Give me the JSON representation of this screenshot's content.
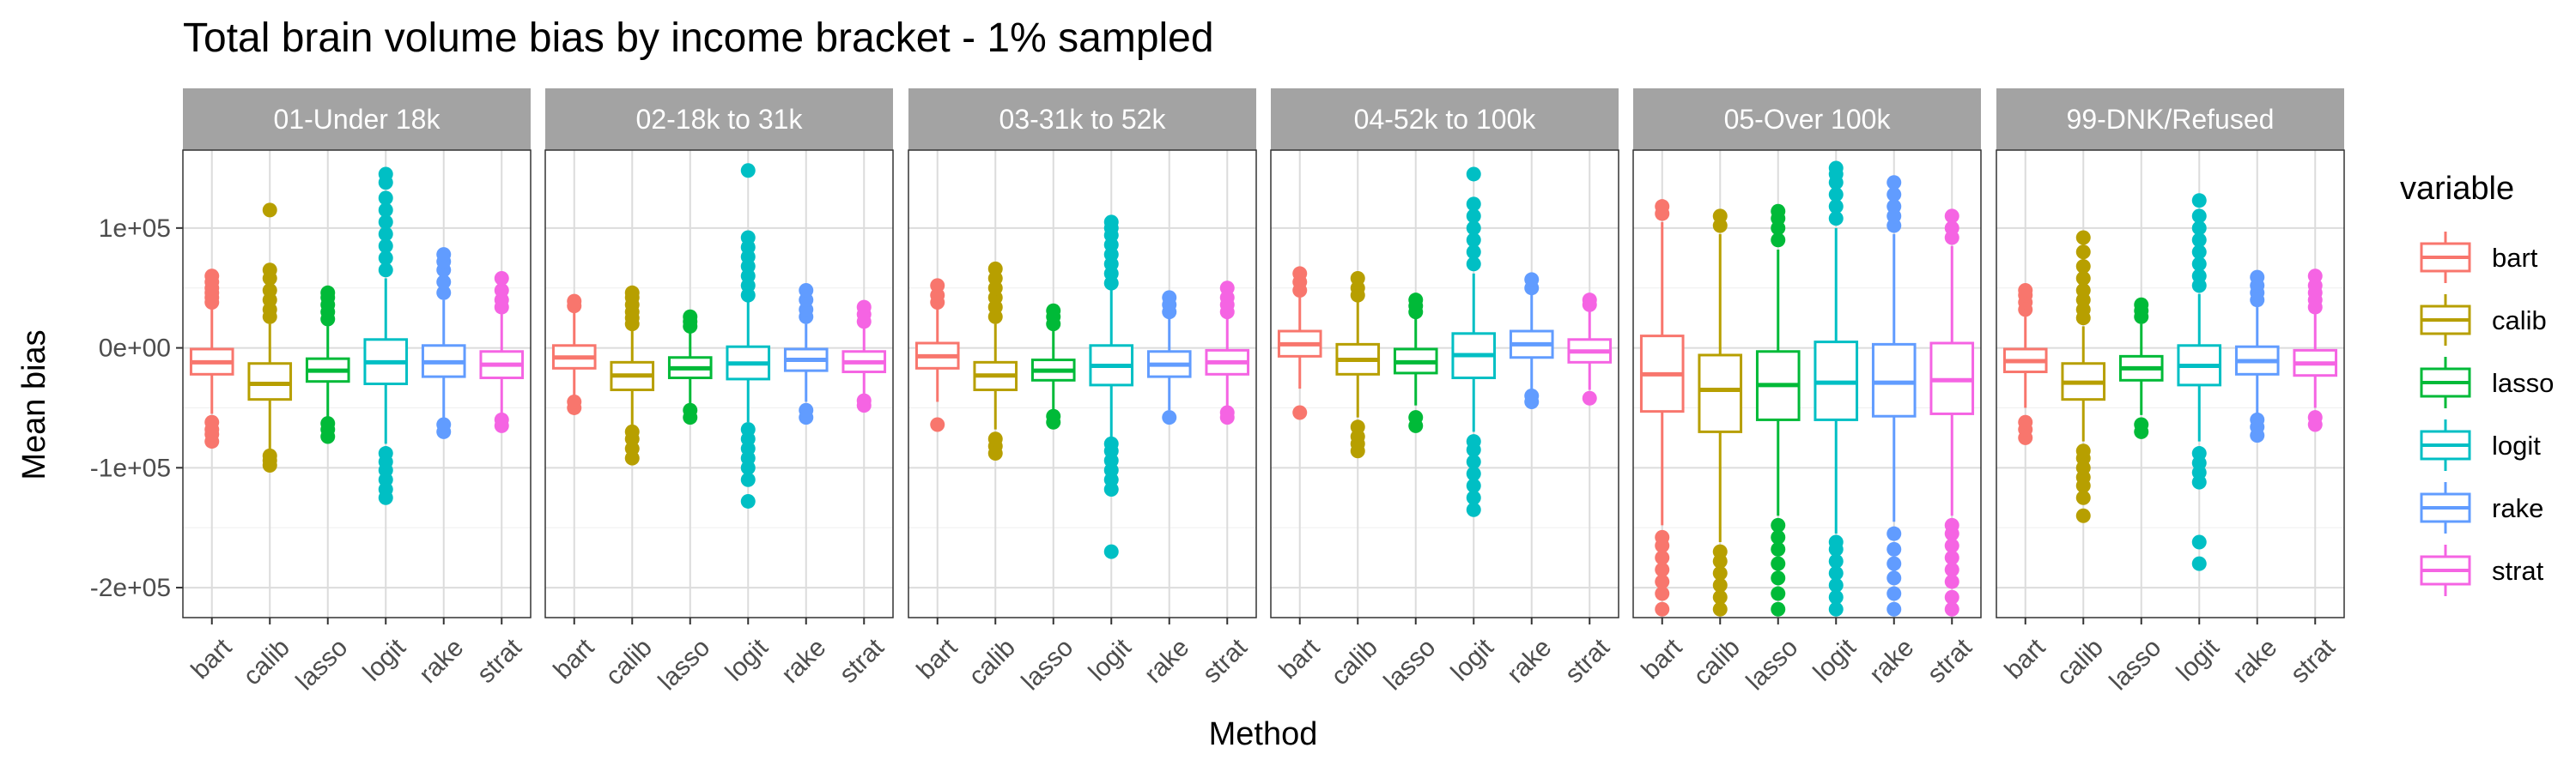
{
  "chart_data": {
    "type": "box",
    "title": "Total brain volume bias by income bracket - 1% sampled",
    "xlabel": "Method",
    "ylabel": "Mean bias",
    "categories": [
      "bart",
      "calib",
      "lasso",
      "logit",
      "rake",
      "strat"
    ],
    "y_ticks": [
      {
        "value": 100000,
        "label": "1e+05"
      },
      {
        "value": 0,
        "label": "0e+00"
      },
      {
        "value": -100000,
        "label": "-1e+05"
      },
      {
        "value": -200000,
        "label": "-2e+05"
      }
    ],
    "ylim": [
      -225000,
      165000
    ],
    "grid": true,
    "legend": {
      "title": "variable",
      "position": "right",
      "entries": [
        "bart",
        "calib",
        "lasso",
        "logit",
        "rake",
        "strat"
      ]
    },
    "colors": {
      "bart": "#F8766D",
      "calib": "#B79F00",
      "lasso": "#00BA38",
      "logit": "#00BFC4",
      "rake": "#619CFF",
      "strat": "#F564E3"
    },
    "panels": [
      {
        "name": "01-Under 18k",
        "boxes": [
          {
            "method": "bart",
            "q1": -22000,
            "median": -12000,
            "q3": -1000,
            "whisker_low": -55000,
            "whisker_high": 33000,
            "outliers": [
              -78000,
              -72000,
              -68000,
              -62000,
              38000,
              42000,
              46000,
              50000,
              55000,
              60000
            ]
          },
          {
            "method": "calib",
            "q1": -43000,
            "median": -30000,
            "q3": -13000,
            "whisker_low": -85000,
            "whisker_high": 20000,
            "outliers": [
              -98000,
              -94000,
              -90000,
              26000,
              32000,
              40000,
              48000,
              58000,
              65000,
              115000
            ]
          },
          {
            "method": "lasso",
            "q1": -28000,
            "median": -19000,
            "q3": -9000,
            "whisker_low": -58000,
            "whisker_high": 18000,
            "outliers": [
              -74000,
              -68000,
              -63000,
              24000,
              30000,
              36000,
              42000,
              46000
            ]
          },
          {
            "method": "logit",
            "q1": -30000,
            "median": -12000,
            "q3": 7000,
            "whisker_low": -80000,
            "whisker_high": 58000,
            "outliers": [
              -125000,
              -118000,
              -110000,
              -102000,
              -95000,
              -88000,
              65000,
              75000,
              85000,
              95000,
              105000,
              115000,
              125000,
              138000,
              145000
            ]
          },
          {
            "method": "rake",
            "q1": -24000,
            "median": -12000,
            "q3": 2000,
            "whisker_low": -60000,
            "whisker_high": 40000,
            "outliers": [
              -70000,
              -64000,
              46000,
              55000,
              65000,
              72000,
              78000
            ]
          },
          {
            "method": "strat",
            "q1": -25000,
            "median": -14000,
            "q3": -3000,
            "whisker_low": -57000,
            "whisker_high": 28000,
            "outliers": [
              -65000,
              -60000,
              34000,
              40000,
              48000,
              58000
            ]
          }
        ]
      },
      {
        "name": "02-18k to 31k",
        "boxes": [
          {
            "method": "bart",
            "q1": -17000,
            "median": -8000,
            "q3": 2000,
            "whisker_low": -42000,
            "whisker_high": 30000,
            "outliers": [
              -50000,
              -45000,
              35000,
              39000
            ]
          },
          {
            "method": "calib",
            "q1": -35000,
            "median": -23000,
            "q3": -12000,
            "whisker_low": -65000,
            "whisker_high": 15000,
            "outliers": [
              -92000,
              -84000,
              -76000,
              -70000,
              20000,
              25000,
              30000,
              36000,
              42000,
              46000
            ]
          },
          {
            "method": "lasso",
            "q1": -25000,
            "median": -17000,
            "q3": -8000,
            "whisker_low": -48000,
            "whisker_high": 13000,
            "outliers": [
              -58000,
              -52000,
              18000,
              22000,
              26000
            ]
          },
          {
            "method": "logit",
            "q1": -26000,
            "median": -13000,
            "q3": 1000,
            "whisker_low": -62000,
            "whisker_high": 38000,
            "outliers": [
              -128000,
              -110000,
              -100000,
              -92000,
              -84000,
              -76000,
              -68000,
              44000,
              52000,
              60000,
              68000,
              76000,
              84000,
              92000,
              148000
            ]
          },
          {
            "method": "rake",
            "q1": -19000,
            "median": -10000,
            "q3": -1000,
            "whisker_low": -45000,
            "whisker_high": 20000,
            "outliers": [
              -58000,
              -52000,
              26000,
              32000,
              40000,
              48000
            ]
          },
          {
            "method": "strat",
            "q1": -20000,
            "median": -12000,
            "q3": -3000,
            "whisker_low": -40000,
            "whisker_high": 18000,
            "outliers": [
              -48000,
              -44000,
              22000,
              28000,
              34000
            ]
          }
        ]
      },
      {
        "name": "03-31k to 52k",
        "boxes": [
          {
            "method": "bart",
            "q1": -17000,
            "median": -7000,
            "q3": 4000,
            "whisker_low": -45000,
            "whisker_high": 33000,
            "outliers": [
              -64000,
              38000,
              44000,
              52000
            ]
          },
          {
            "method": "calib",
            "q1": -35000,
            "median": -23000,
            "q3": -12000,
            "whisker_low": -68000,
            "whisker_high": 20000,
            "outliers": [
              -88000,
              -82000,
              -76000,
              26000,
              34000,
              42000,
              50000,
              58000,
              66000
            ]
          },
          {
            "method": "lasso",
            "q1": -27000,
            "median": -19000,
            "q3": -10000,
            "whisker_low": -52000,
            "whisker_high": 14000,
            "outliers": [
              -62000,
              -57000,
              20000,
              26000,
              31000
            ]
          },
          {
            "method": "logit",
            "q1": -31000,
            "median": -15000,
            "q3": 2000,
            "whisker_low": -75000,
            "whisker_high": 48000,
            "outliers": [
              -170000,
              -118000,
              -110000,
              -102000,
              -94000,
              -86000,
              -80000,
              54000,
              62000,
              70000,
              78000,
              86000,
              94000,
              100000,
              105000
            ]
          },
          {
            "method": "rake",
            "q1": -24000,
            "median": -14000,
            "q3": -3000,
            "whisker_low": -52000,
            "whisker_high": 25000,
            "outliers": [
              -58000,
              30000,
              36000,
              42000
            ]
          },
          {
            "method": "strat",
            "q1": -22000,
            "median": -12000,
            "q3": -2000,
            "whisker_low": -50000,
            "whisker_high": 25000,
            "outliers": [
              -58000,
              -54000,
              30000,
              36000,
              42000,
              50000
            ]
          }
        ]
      },
      {
        "name": "04-52k to 100k",
        "boxes": [
          {
            "method": "bart",
            "q1": -7000,
            "median": 3000,
            "q3": 14000,
            "whisker_low": -34000,
            "whisker_high": 42000,
            "outliers": [
              -54000,
              48000,
              55000,
              62000
            ]
          },
          {
            "method": "calib",
            "q1": -22000,
            "median": -10000,
            "q3": 3000,
            "whisker_low": -58000,
            "whisker_high": 38000,
            "outliers": [
              -86000,
              -80000,
              -74000,
              -66000,
              44000,
              50000,
              58000
            ]
          },
          {
            "method": "lasso",
            "q1": -21000,
            "median": -12000,
            "q3": -1000,
            "whisker_low": -48000,
            "whisker_high": 25000,
            "outliers": [
              -65000,
              -58000,
              30000,
              35000,
              40000
            ]
          },
          {
            "method": "logit",
            "q1": -25000,
            "median": -6000,
            "q3": 12000,
            "whisker_low": -70000,
            "whisker_high": 62000,
            "outliers": [
              -135000,
              -125000,
              -115000,
              -105000,
              -95000,
              -85000,
              -78000,
              70000,
              80000,
              90000,
              100000,
              110000,
              120000,
              145000
            ]
          },
          {
            "method": "rake",
            "q1": -8000,
            "median": 3000,
            "q3": 14000,
            "whisker_low": -36000,
            "whisker_high": 45000,
            "outliers": [
              -45000,
              -40000,
              50000,
              57000
            ]
          },
          {
            "method": "strat",
            "q1": -12000,
            "median": -3000,
            "q3": 7000,
            "whisker_low": -35000,
            "whisker_high": 32000,
            "outliers": [
              -42000,
              36000,
              40000
            ]
          }
        ]
      },
      {
        "name": "05-Over 100k",
        "boxes": [
          {
            "method": "bart",
            "q1": -53000,
            "median": -22000,
            "q3": 10000,
            "whisker_low": -148000,
            "whisker_high": 105000,
            "outliers": [
              -218000,
              -205000,
              -195000,
              -185000,
              -175000,
              -165000,
              -158000,
              112000,
              118000
            ]
          },
          {
            "method": "calib",
            "q1": -70000,
            "median": -35000,
            "q3": -6000,
            "whisker_low": -162000,
            "whisker_high": 95000,
            "outliers": [
              -218000,
              -208000,
              -198000,
              -188000,
              -178000,
              -170000,
              102000,
              110000
            ]
          },
          {
            "method": "lasso",
            "q1": -60000,
            "median": -31000,
            "q3": -3000,
            "whisker_low": -140000,
            "whisker_high": 82000,
            "outliers": [
              -218000,
              -205000,
              -192000,
              -180000,
              -168000,
              -158000,
              -148000,
              90000,
              100000,
              108000,
              114000
            ]
          },
          {
            "method": "logit",
            "q1": -60000,
            "median": -29000,
            "q3": 5000,
            "whisker_low": -155000,
            "whisker_high": 100000,
            "outliers": [
              -218000,
              -208000,
              -198000,
              -188000,
              -178000,
              -168000,
              -162000,
              108000,
              118000,
              128000,
              138000,
              145000,
              150000
            ]
          },
          {
            "method": "rake",
            "q1": -57000,
            "median": -29000,
            "q3": 3000,
            "whisker_low": -145000,
            "whisker_high": 95000,
            "outliers": [
              -218000,
              -205000,
              -192000,
              -180000,
              -168000,
              -155000,
              102000,
              110000,
              118000,
              128000,
              138000
            ]
          },
          {
            "method": "strat",
            "q1": -55000,
            "median": -27000,
            "q3": 4000,
            "whisker_low": -140000,
            "whisker_high": 85000,
            "outliers": [
              -218000,
              -208000,
              -195000,
              -185000,
              -175000,
              -165000,
              -155000,
              -148000,
              92000,
              100000,
              110000
            ]
          }
        ]
      },
      {
        "name": "99-DNK/Refused",
        "boxes": [
          {
            "method": "bart",
            "q1": -20000,
            "median": -11000,
            "q3": -1000,
            "whisker_low": -50000,
            "whisker_high": 26000,
            "outliers": [
              -75000,
              -68000,
              -62000,
              32000,
              38000,
              44000,
              48000
            ]
          },
          {
            "method": "calib",
            "q1": -43000,
            "median": -29000,
            "q3": -13000,
            "whisker_low": -78000,
            "whisker_high": 18000,
            "outliers": [
              -140000,
              -125000,
              -115000,
              -108000,
              -100000,
              -92000,
              -86000,
              25000,
              32000,
              40000,
              48000,
              58000,
              68000,
              80000,
              92000
            ]
          },
          {
            "method": "lasso",
            "q1": -27000,
            "median": -17000,
            "q3": -7000,
            "whisker_low": -56000,
            "whisker_high": 20000,
            "outliers": [
              -70000,
              -64000,
              26000,
              31000,
              36000
            ]
          },
          {
            "method": "logit",
            "q1": -31000,
            "median": -15000,
            "q3": 2000,
            "whisker_low": -78000,
            "whisker_high": 45000,
            "outliers": [
              -180000,
              -162000,
              -112000,
              -104000,
              -96000,
              -88000,
              52000,
              60000,
              70000,
              80000,
              90000,
              100000,
              110000,
              123000
            ]
          },
          {
            "method": "rake",
            "q1": -22000,
            "median": -11000,
            "q3": 1000,
            "whisker_low": -55000,
            "whisker_high": 34000,
            "outliers": [
              -73000,
              -66000,
              -60000,
              40000,
              46000,
              52000,
              59000
            ]
          },
          {
            "method": "strat",
            "q1": -23000,
            "median": -13000,
            "q3": -2000,
            "whisker_low": -50000,
            "whisker_high": 28000,
            "outliers": [
              -64000,
              -58000,
              34000,
              40000,
              46000,
              52000,
              60000
            ]
          }
        ]
      }
    ]
  }
}
